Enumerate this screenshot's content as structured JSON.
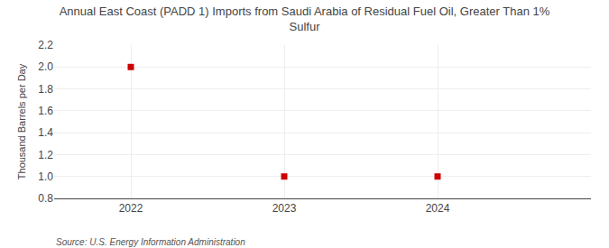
{
  "chart_data": {
    "type": "scatter",
    "title": "Annual East Coast (PADD 1) Imports from Saudi Arabia of Residual Fuel Oil, Greater Than 1%\nSulfur",
    "ylabel": "Thousand Barrels per Day",
    "annotations": [
      "Source: U.S. Energy Information Administration"
    ],
    "x": [
      2022,
      2023,
      2024
    ],
    "values": [
      2.0,
      1.0,
      1.0
    ],
    "color": "#cc0000",
    "marker": "square",
    "xlim": [
      2021.5,
      2025.0
    ],
    "ylim": [
      0.8,
      2.2
    ],
    "xticks": [
      2022,
      2023,
      2024
    ],
    "yticks": [
      0.8,
      {
        "value": 1.0,
        "label": "1.0"
      },
      1.2,
      1.4,
      1.6,
      1.8,
      {
        "value": 2.0,
        "label": "2.0"
      },
      2.2
    ],
    "grid": true
  }
}
